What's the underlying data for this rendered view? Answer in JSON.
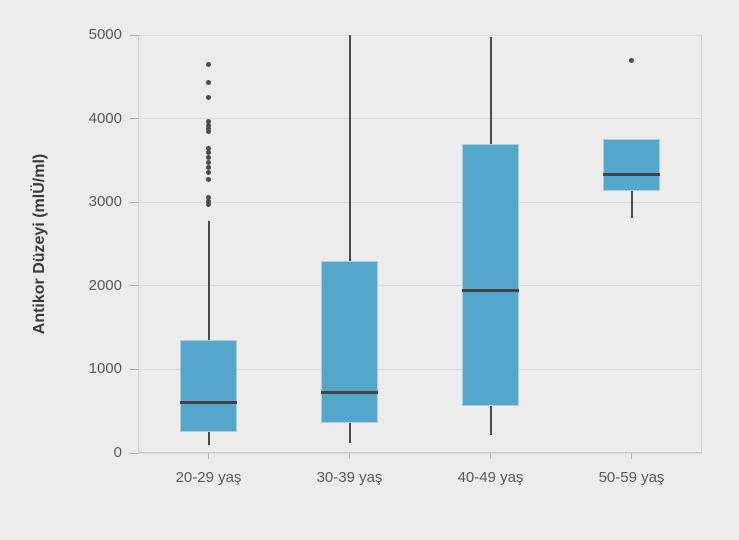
{
  "chart_data": {
    "type": "boxplot",
    "title": "",
    "xlabel": "",
    "ylabel": "Antikor Düzeyi (mlÜ/ml)",
    "ylim": [
      0,
      5000
    ],
    "yticks": [
      0,
      1000,
      2000,
      3000,
      4000,
      5000
    ],
    "grid": true,
    "legend": null,
    "categories": [
      "20-29 yaş",
      "30-39 yaş",
      "40-49 yaş",
      "50-59 yaş"
    ],
    "series": [
      {
        "category": "20-29 yaş",
        "whisker_low": 100,
        "q1": 250,
        "median": 610,
        "q3": 1350,
        "whisker_high": 2780,
        "outliers": [
          2970,
          3010,
          3060,
          3270,
          3360,
          3410,
          3470,
          3530,
          3590,
          3640,
          3845,
          3880,
          3920,
          3960,
          4250,
          4430,
          4650
        ]
      },
      {
        "category": "30-39 yaş",
        "whisker_low": 120,
        "q1": 360,
        "median": 720,
        "q3": 2300,
        "whisker_high": 5000,
        "outliers": []
      },
      {
        "category": "40-49 yaş",
        "whisker_low": 210,
        "q1": 560,
        "median": 1940,
        "q3": 3700,
        "whisker_high": 4980,
        "outliers": []
      },
      {
        "category": "50-59 yaş",
        "whisker_low": 2810,
        "q1": 3130,
        "median": 3330,
        "q3": 3760,
        "whisker_high": 3760,
        "outliers": [
          4690
        ]
      }
    ],
    "colors": {
      "background": "#ececec",
      "gridline": "#dbdbdb",
      "axis_spine": "#cfcfcf",
      "box_fill": "#54a6cb",
      "box_edge": "#a9cede",
      "median_line": "#3f444a",
      "whisker": "#4b4b4b",
      "outlier": "#4b4b4b",
      "tick_label": "#595959",
      "axis_title": "#3a3a3a"
    }
  }
}
